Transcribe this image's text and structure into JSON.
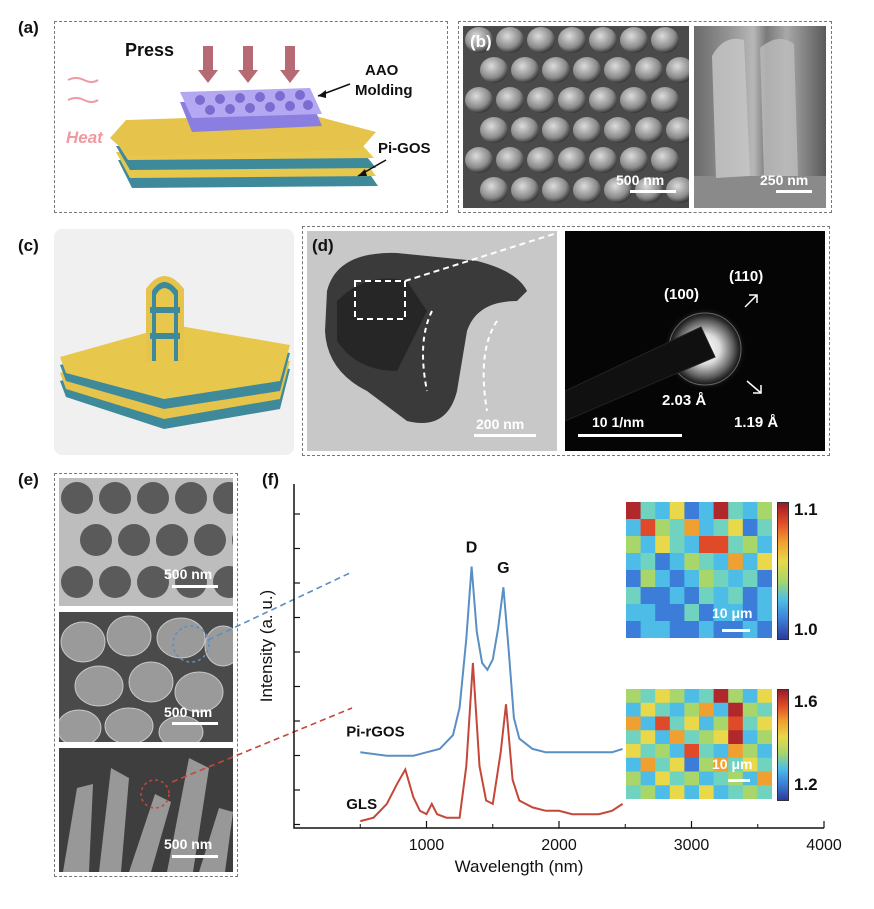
{
  "panels": {
    "a": {
      "label": "(a)",
      "press": "Press",
      "heat": "Heat",
      "aao_line1": "AAO",
      "aao_line2": "Molding",
      "pigos": "Pi-GOS"
    },
    "b": {
      "label": "(b)",
      "scale_left": "500 nm",
      "scale_right": "250 nm"
    },
    "c": {
      "label": "(c)"
    },
    "d": {
      "label": "(d)",
      "scale_tem": "200 nm",
      "scale_saed": "10 1/nm",
      "ring_100": "(100)",
      "ring_110": "(110)",
      "d_203": "2.03 Å",
      "d_119": "1.19 Å"
    },
    "e": {
      "label": "(e)",
      "scale_top": "500 nm",
      "scale_mid": "500 nm",
      "scale_bot": "500 nm"
    },
    "f": {
      "label": "(f)",
      "map_top_scale": "10 μm",
      "map_bot_scale": "10 μm",
      "colorbar_top": {
        "max": "1.1",
        "min": "1.0"
      },
      "colorbar_bot": {
        "max": "1.6",
        "min": "1.2"
      }
    }
  },
  "chart_data": {
    "type": "line",
    "xlabel": "Wavelength (nm)",
    "ylabel": "Intensity (a. u.)",
    "xlim": [
      0,
      4000
    ],
    "xticks": [
      "1000",
      "2000",
      "3000",
      "4000"
    ],
    "peak_labels": [
      "D",
      "G"
    ],
    "series": [
      {
        "name": "Pi-rGOS",
        "color": "#5a8fc4",
        "x": [
          500,
          700,
          900,
          1000,
          1100,
          1200,
          1250,
          1300,
          1340,
          1380,
          1420,
          1460,
          1500,
          1540,
          1580,
          1620,
          1660,
          1700,
          1800,
          1900,
          2000,
          2100,
          2200,
          2300,
          2400,
          2480
        ],
        "y": [
          0.22,
          0.21,
          0.21,
          0.22,
          0.23,
          0.27,
          0.35,
          0.55,
          0.76,
          0.57,
          0.48,
          0.46,
          0.49,
          0.58,
          0.7,
          0.52,
          0.32,
          0.26,
          0.23,
          0.22,
          0.22,
          0.22,
          0.22,
          0.22,
          0.22,
          0.23
        ]
      },
      {
        "name": "GLS",
        "color": "#c4473a",
        "x": [
          500,
          600,
          700,
          780,
          840,
          900,
          950,
          1000,
          1040,
          1080,
          1150,
          1250,
          1300,
          1350,
          1400,
          1450,
          1500,
          1560,
          1600,
          1650,
          1700,
          1800,
          1900,
          2000,
          2100,
          2200,
          2300,
          2400,
          2480
        ],
        "y": [
          0.02,
          0.03,
          0.07,
          0.13,
          0.17,
          0.09,
          0.05,
          0.04,
          0.07,
          0.04,
          0.03,
          0.03,
          0.18,
          0.48,
          0.18,
          0.08,
          0.07,
          0.22,
          0.36,
          0.14,
          0.08,
          0.06,
          0.05,
          0.05,
          0.04,
          0.04,
          0.04,
          0.05,
          0.07
        ]
      }
    ]
  },
  "heatmaps": {
    "palette": [
      "#2c3c9a",
      "#3b7dd8",
      "#4dbde8",
      "#6fd3c0",
      "#a8d66a",
      "#e8d84a",
      "#f0a030",
      "#e04a28",
      "#b0282c"
    ],
    "top": [
      [
        8,
        3,
        2,
        5,
        1,
        2,
        8,
        3,
        2,
        4
      ],
      [
        2,
        7,
        4,
        3,
        6,
        2,
        3,
        5,
        1,
        3
      ],
      [
        4,
        2,
        5,
        3,
        2,
        7,
        7,
        3,
        4,
        2
      ],
      [
        2,
        3,
        1,
        2,
        4,
        3,
        2,
        6,
        2,
        5
      ],
      [
        1,
        4,
        2,
        1,
        2,
        4,
        3,
        2,
        3,
        1
      ],
      [
        3,
        1,
        1,
        2,
        1,
        3,
        2,
        3,
        1,
        2
      ],
      [
        2,
        2,
        1,
        1,
        3,
        1,
        2,
        2,
        1,
        2
      ],
      [
        1,
        2,
        2,
        1,
        1,
        2,
        1,
        1,
        2,
        1
      ]
    ],
    "bottom": [
      [
        4,
        3,
        5,
        4,
        2,
        3,
        8,
        4,
        2,
        5
      ],
      [
        2,
        5,
        3,
        2,
        4,
        6,
        2,
        8,
        4,
        3
      ],
      [
        6,
        2,
        7,
        3,
        5,
        2,
        4,
        7,
        3,
        5
      ],
      [
        3,
        5,
        2,
        6,
        3,
        4,
        5,
        8,
        2,
        4
      ],
      [
        5,
        3,
        4,
        2,
        7,
        3,
        2,
        6,
        4,
        2
      ],
      [
        2,
        6,
        3,
        5,
        1,
        4,
        6,
        3,
        5,
        3
      ],
      [
        4,
        2,
        5,
        3,
        4,
        2,
        3,
        4,
        2,
        6
      ],
      [
        3,
        4,
        2,
        5,
        2,
        5,
        2,
        3,
        4,
        3
      ]
    ]
  }
}
